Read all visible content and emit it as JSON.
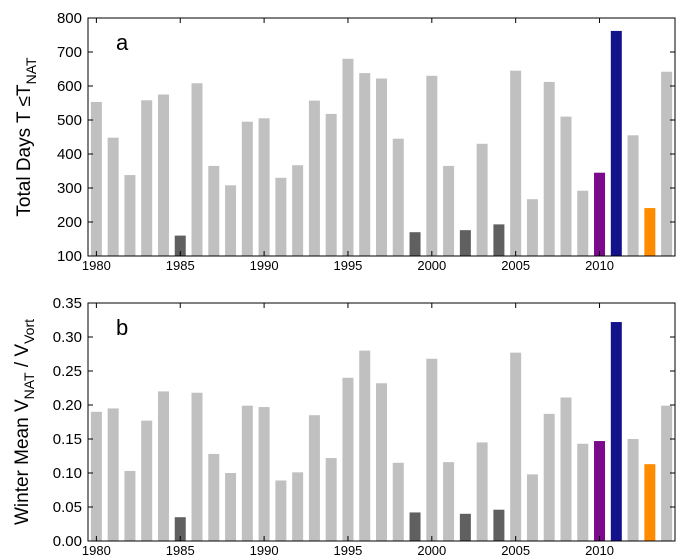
{
  "chart_data": [
    {
      "type": "bar",
      "panel_label": "a",
      "ylabel": [
        "Total Days T ≤T",
        "NAT"
      ],
      "x": [
        1980,
        1981,
        1982,
        1983,
        1984,
        1985,
        1986,
        1987,
        1988,
        1989,
        1990,
        1991,
        1992,
        1993,
        1994,
        1995,
        1996,
        1997,
        1998,
        1999,
        2000,
        2001,
        2002,
        2003,
        2004,
        2005,
        2006,
        2007,
        2008,
        2009,
        2010,
        2011,
        2012,
        2013,
        2014
      ],
      "values": [
        553,
        448,
        338,
        558,
        575,
        160,
        608,
        365,
        308,
        495,
        505,
        330,
        367,
        557,
        518,
        680,
        638,
        622,
        445,
        170,
        630,
        365,
        176,
        430,
        193,
        645,
        267,
        612,
        510,
        292,
        345,
        762,
        455,
        241,
        642
      ],
      "colors": [
        "#c0c0c0",
        "#c0c0c0",
        "#c0c0c0",
        "#c0c0c0",
        "#c0c0c0",
        "#606060",
        "#c0c0c0",
        "#c0c0c0",
        "#c0c0c0",
        "#c0c0c0",
        "#c0c0c0",
        "#c0c0c0",
        "#c0c0c0",
        "#c0c0c0",
        "#c0c0c0",
        "#c0c0c0",
        "#c0c0c0",
        "#c0c0c0",
        "#c0c0c0",
        "#606060",
        "#c0c0c0",
        "#c0c0c0",
        "#606060",
        "#c0c0c0",
        "#606060",
        "#c0c0c0",
        "#c0c0c0",
        "#c0c0c0",
        "#c0c0c0",
        "#c0c0c0",
        "#7b0a8c",
        "#12128a",
        "#c0c0c0",
        "#ff8c00",
        "#c0c0c0"
      ],
      "xlim": [
        1979.5,
        2014.5
      ],
      "xticks": [
        1980,
        1985,
        1990,
        1995,
        2000,
        2005,
        2010
      ],
      "ylim": [
        100,
        800
      ],
      "yticks": [
        100,
        200,
        300,
        400,
        500,
        600,
        700,
        800
      ]
    },
    {
      "type": "bar",
      "panel_label": "b",
      "ylabel": [
        "Winter Mean  V",
        "NAT",
        " / V",
        "Vort"
      ],
      "x": [
        1980,
        1981,
        1982,
        1983,
        1984,
        1985,
        1986,
        1987,
        1988,
        1989,
        1990,
        1991,
        1992,
        1993,
        1994,
        1995,
        1996,
        1997,
        1998,
        1999,
        2000,
        2001,
        2002,
        2003,
        2004,
        2005,
        2006,
        2007,
        2008,
        2009,
        2010,
        2011,
        2012,
        2013,
        2014
      ],
      "values": [
        0.19,
        0.195,
        0.103,
        0.177,
        0.22,
        0.035,
        0.218,
        0.128,
        0.1,
        0.199,
        0.197,
        0.089,
        0.101,
        0.185,
        0.122,
        0.24,
        0.28,
        0.232,
        0.115,
        0.042,
        0.268,
        0.116,
        0.04,
        0.145,
        0.046,
        0.277,
        0.098,
        0.187,
        0.211,
        0.143,
        0.147,
        0.322,
        0.15,
        0.113,
        0.199
      ],
      "colors": [
        "#c0c0c0",
        "#c0c0c0",
        "#c0c0c0",
        "#c0c0c0",
        "#c0c0c0",
        "#606060",
        "#c0c0c0",
        "#c0c0c0",
        "#c0c0c0",
        "#c0c0c0",
        "#c0c0c0",
        "#c0c0c0",
        "#c0c0c0",
        "#c0c0c0",
        "#c0c0c0",
        "#c0c0c0",
        "#c0c0c0",
        "#c0c0c0",
        "#c0c0c0",
        "#606060",
        "#c0c0c0",
        "#c0c0c0",
        "#606060",
        "#c0c0c0",
        "#606060",
        "#c0c0c0",
        "#c0c0c0",
        "#c0c0c0",
        "#c0c0c0",
        "#c0c0c0",
        "#7b0a8c",
        "#12128a",
        "#c0c0c0",
        "#ff8c00",
        "#c0c0c0"
      ],
      "xlim": [
        1979.5,
        2014.5
      ],
      "xticks": [
        1980,
        1985,
        1990,
        1995,
        2000,
        2005,
        2010
      ],
      "ylim": [
        0,
        0.35
      ],
      "yticks": [
        {
          "value": 0,
          "label": "0.00"
        },
        {
          "value": 0.05,
          "label": "0.05"
        },
        {
          "value": 0.1,
          "label": "0.10"
        },
        {
          "value": 0.15,
          "label": "0.15"
        },
        {
          "value": 0.2,
          "label": "0.20"
        },
        {
          "value": 0.25,
          "label": "0.25"
        },
        {
          "value": 0.3,
          "label": "0.30"
        },
        {
          "value": 0.35,
          "label": "0.35"
        }
      ]
    }
  ]
}
